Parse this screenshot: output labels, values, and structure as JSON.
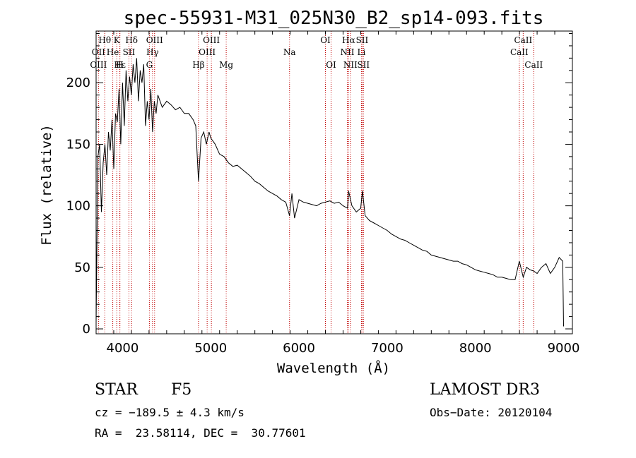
{
  "chart_data": {
    "type": "line",
    "title": "spec-55931-M31_025N30_B2_sp14-093.fits",
    "xlabel": "Wavelength (Å)",
    "ylabel": "Flux (relative)",
    "xlim": [
      3700,
      9100
    ],
    "ylim": [
      -4,
      242
    ],
    "xticks": [
      4000,
      5000,
      6000,
      7000,
      8000,
      9000
    ],
    "yticks": [
      0,
      50,
      100,
      150,
      200
    ],
    "x": [
      3700,
      3720,
      3740,
      3760,
      3780,
      3800,
      3820,
      3840,
      3860,
      3880,
      3900,
      3920,
      3940,
      3960,
      3980,
      4000,
      4020,
      4040,
      4060,
      4080,
      4100,
      4120,
      4140,
      4160,
      4180,
      4200,
      4220,
      4240,
      4260,
      4280,
      4300,
      4320,
      4340,
      4360,
      4380,
      4400,
      4450,
      4500,
      4550,
      4600,
      4650,
      4700,
      4750,
      4800,
      4830,
      4861,
      4890,
      4920,
      4950,
      4980,
      5000,
      5050,
      5100,
      5150,
      5200,
      5250,
      5300,
      5350,
      5400,
      5450,
      5500,
      5550,
      5600,
      5650,
      5700,
      5750,
      5800,
      5850,
      5893,
      5920,
      5950,
      6000,
      6050,
      6100,
      6150,
      6200,
      6250,
      6300,
      6350,
      6400,
      6450,
      6500,
      6550,
      6563,
      6600,
      6650,
      6700,
      6720,
      6750,
      6800,
      6850,
      6900,
      6950,
      7000,
      7050,
      7100,
      7150,
      7200,
      7250,
      7300,
      7350,
      7400,
      7450,
      7500,
      7550,
      7600,
      7650,
      7700,
      7750,
      7800,
      7850,
      7900,
      7950,
      8000,
      8050,
      8100,
      8150,
      8200,
      8250,
      8300,
      8350,
      8400,
      8450,
      8498,
      8542,
      8580,
      8620,
      8662,
      8700,
      8750,
      8800,
      8850,
      8900,
      8950,
      8990,
      9000
    ],
    "values": [
      5,
      140,
      150,
      95,
      135,
      150,
      125,
      160,
      145,
      170,
      130,
      175,
      168,
      195,
      150,
      200,
      165,
      210,
      185,
      205,
      190,
      215,
      200,
      220,
      185,
      210,
      200,
      215,
      165,
      185,
      170,
      195,
      160,
      185,
      175,
      190,
      180,
      185,
      182,
      178,
      180,
      175,
      175,
      170,
      165,
      120,
      155,
      160,
      150,
      160,
      155,
      150,
      142,
      140,
      135,
      132,
      133,
      130,
      127,
      124,
      120,
      118,
      115,
      112,
      110,
      108,
      105,
      103,
      92,
      110,
      90,
      105,
      103,
      102,
      101,
      100,
      102,
      103,
      104,
      102,
      103,
      100,
      98,
      112,
      100,
      95,
      98,
      112,
      92,
      88,
      86,
      84,
      82,
      80,
      77,
      75,
      73,
      72,
      70,
      68,
      66,
      64,
      63,
      60,
      59,
      58,
      57,
      56,
      55,
      55,
      53,
      52,
      50,
      48,
      47,
      46,
      45,
      44,
      42,
      42,
      41,
      40,
      40,
      55,
      42,
      50,
      48,
      47,
      45,
      50,
      53,
      45,
      50,
      58,
      55,
      2
    ],
    "spectral_lines": [
      {
        "label": "Hθ",
        "wavelength": 3798,
        "row": 1
      },
      {
        "label": "K",
        "wavelength": 3934,
        "row": 1
      },
      {
        "label": "Hδ",
        "wavelength": 4102,
        "row": 1
      },
      {
        "label": "OIII",
        "wavelength": 4363,
        "row": 1
      },
      {
        "label": "OIII",
        "wavelength": 5007,
        "row": 1
      },
      {
        "label": "OI",
        "wavelength": 6300,
        "row": 1
      },
      {
        "label": "Hα",
        "wavelength": 6563,
        "row": 1
      },
      {
        "label": "SII",
        "wavelength": 6716,
        "row": 1
      },
      {
        "label": "CaII",
        "wavelength": 8542,
        "row": 1
      },
      {
        "label": "OII",
        "wavelength": 3727,
        "row": 2
      },
      {
        "label": "He",
        "wavelength": 3889,
        "row": 2
      },
      {
        "label": "SII",
        "wavelength": 4072,
        "row": 2
      },
      {
        "label": "Hγ",
        "wavelength": 4340,
        "row": 2
      },
      {
        "label": "OIII",
        "wavelength": 4959,
        "row": 2
      },
      {
        "label": "Na",
        "wavelength": 5893,
        "row": 2
      },
      {
        "label": "NII",
        "wavelength": 6548,
        "row": 2
      },
      {
        "label": "Li",
        "wavelength": 6708,
        "row": 2
      },
      {
        "label": "CaII",
        "wavelength": 8498,
        "row": 2
      },
      {
        "label": "OIII",
        "wavelength": 3727,
        "row": 3
      },
      {
        "label": "Hε",
        "wavelength": 3970,
        "row": 3
      },
      {
        "label": "H",
        "wavelength": 3968,
        "row": 3
      },
      {
        "label": "G",
        "wavelength": 4304,
        "row": 3
      },
      {
        "label": "Hβ",
        "wavelength": 4861,
        "row": 3
      },
      {
        "label": "Mg",
        "wavelength": 5175,
        "row": 3
      },
      {
        "label": "OI",
        "wavelength": 6364,
        "row": 3
      },
      {
        "label": "NII",
        "wavelength": 6583,
        "row": 3
      },
      {
        "label": "SII",
        "wavelength": 6731,
        "row": 3
      },
      {
        "label": "CaII",
        "wavelength": 8662,
        "row": 3
      }
    ],
    "colors": {
      "spectrum": "#000000",
      "line_marker": "#c00000"
    }
  },
  "info": {
    "object_type": "STAR",
    "subclass": "F5",
    "survey": "LAMOST DR3",
    "redshift_text": "cz = −189.5 ± 4.3 km/s",
    "obs_date": "Obs−Date: 20120104",
    "coords": "RA =  23.58114, DEC =  30.77601"
  }
}
